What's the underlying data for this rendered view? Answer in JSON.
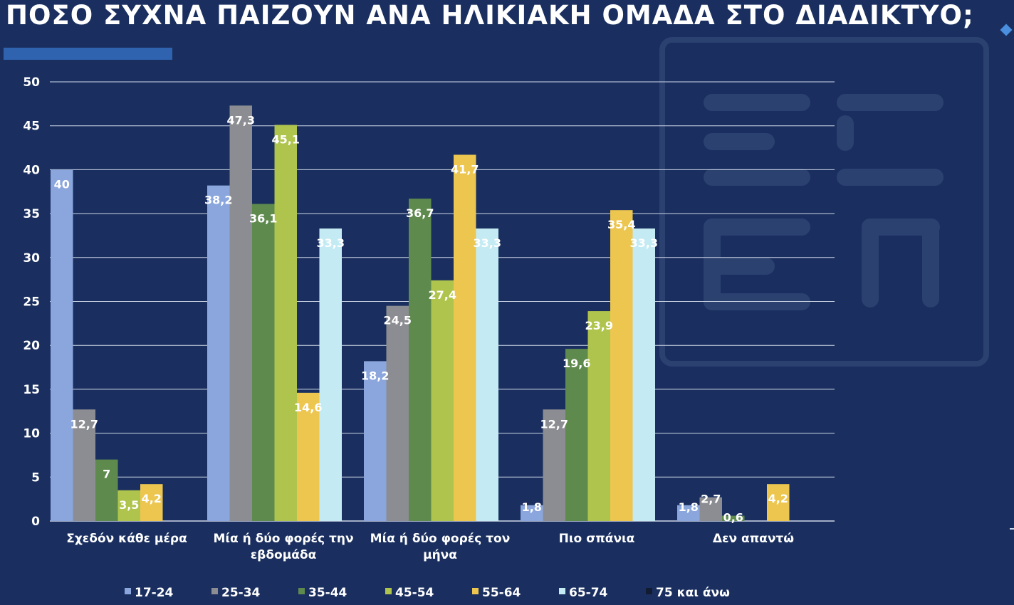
{
  "header": {
    "title": "ΠΟΣΟ ΣΥΧΝΑ ΠΑΙΖΟΥΝ ΑΝΑ ΗΛΙΚΙΑΚΗ ΟΜΑΔΑ ΣΤΟ ΔΙΑΔΙΚΤΥΟ;"
  },
  "colors": {
    "background": "#1a2f5f",
    "watermark": "#2b4170",
    "gridline": "#cfd8e8",
    "text": "#ffffff"
  },
  "chart_data": {
    "type": "bar",
    "title": "",
    "xlabel": "",
    "ylabel": "",
    "ylim": [
      0,
      50
    ],
    "yticks": [
      0,
      5,
      10,
      15,
      20,
      25,
      30,
      35,
      40,
      45,
      50
    ],
    "grid": true,
    "legend_position": "bottom",
    "categories": [
      [
        "Σχεδόν κάθε μέρα"
      ],
      [
        "Μία ή δύο φορές την",
        "εβδομάδα"
      ],
      [
        "Μία ή δύο φορές τον",
        "μήνα"
      ],
      [
        "Πιο σπάνια"
      ],
      [
        "Δεν απαντώ"
      ]
    ],
    "series": [
      {
        "name": "17-24",
        "color": "#8aa6dd",
        "values": [
          40,
          38.2,
          18.2,
          1.8,
          1.8
        ],
        "labels": [
          "40",
          "38,2",
          "18,2",
          "1,8",
          "1,8"
        ]
      },
      {
        "name": "25-34",
        "color": "#8c8d92",
        "values": [
          12.7,
          47.3,
          24.5,
          12.7,
          2.7
        ],
        "labels": [
          "12,7",
          "47,3",
          "24,5",
          "12,7",
          "2,7"
        ]
      },
      {
        "name": "35-44",
        "color": "#5e8a4e",
        "values": [
          7,
          36.1,
          36.7,
          19.6,
          0.6
        ],
        "labels": [
          "7",
          "36,1",
          "36,7",
          "19,6",
          "0,6"
        ]
      },
      {
        "name": "45-54",
        "color": "#afc44d",
        "values": [
          3.5,
          45.1,
          27.4,
          23.9,
          0
        ],
        "labels": [
          "3,5",
          "45,1",
          "27,4",
          "23,9",
          ""
        ]
      },
      {
        "name": "55-64",
        "color": "#ecc64f",
        "values": [
          4.2,
          14.6,
          41.7,
          35.4,
          4.2
        ],
        "labels": [
          "4,2",
          "14,6",
          "41,7",
          "35,4",
          "4,2"
        ]
      },
      {
        "name": "65-74",
        "color": "#c4ebf4",
        "values": [
          0,
          33.3,
          33.3,
          33.3,
          0
        ],
        "labels": [
          "",
          "33,3",
          "33,3",
          "33,3",
          ""
        ]
      },
      {
        "name": "75 και άνω",
        "color": "#111c33",
        "values": [
          0,
          0,
          0,
          0,
          0
        ],
        "labels": [
          "",
          "",
          "",
          "",
          ""
        ]
      }
    ]
  }
}
